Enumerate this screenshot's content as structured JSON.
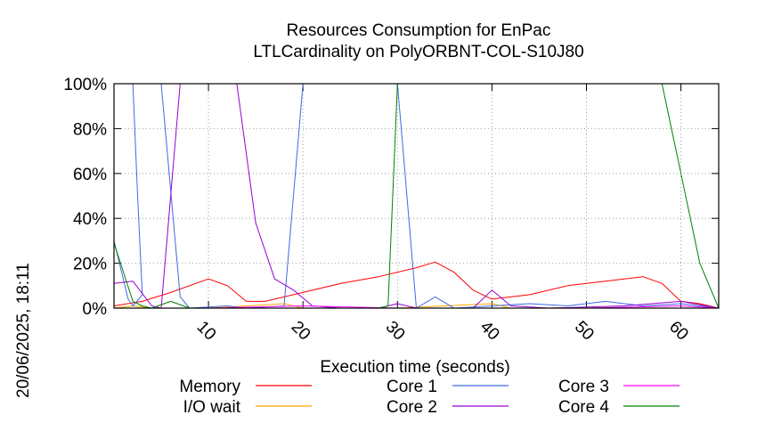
{
  "chart_data": {
    "type": "line",
    "title": "Resources Consumption for EnPac",
    "subtitle": "LTLCardinality on PolyORBNT-COL-S10J80",
    "xlabel": "Execution time (seconds)",
    "ylabel": "",
    "timestamp": "20/06/2025, 18:11",
    "xlim": [
      0,
      64
    ],
    "ylim": [
      0,
      100
    ],
    "x_ticks": [
      10,
      20,
      30,
      40,
      50,
      60
    ],
    "y_ticks": [
      0,
      20,
      40,
      60,
      80,
      100
    ],
    "y_tick_labels": [
      "0%",
      "20%",
      "40%",
      "60%",
      "80%",
      "100%"
    ],
    "grid": true,
    "legend_position": "bottom",
    "series": [
      {
        "name": "Memory",
        "color": "#ff0000",
        "points": [
          [
            0,
            1
          ],
          [
            3,
            3
          ],
          [
            6,
            7
          ],
          [
            10,
            13
          ],
          [
            12,
            10
          ],
          [
            14,
            3
          ],
          [
            16,
            3
          ],
          [
            20,
            7
          ],
          [
            24,
            11
          ],
          [
            28,
            14
          ],
          [
            32,
            18
          ],
          [
            34,
            20.5
          ],
          [
            36,
            16
          ],
          [
            38,
            8
          ],
          [
            40,
            4
          ],
          [
            44,
            6
          ],
          [
            48,
            10
          ],
          [
            52,
            12
          ],
          [
            56,
            14
          ],
          [
            58,
            11
          ],
          [
            60,
            3
          ],
          [
            62,
            2
          ],
          [
            64,
            0
          ]
        ]
      },
      {
        "name": "I/O wait",
        "color": "#ffa500",
        "points": [
          [
            0,
            0
          ],
          [
            2,
            1
          ],
          [
            4,
            0
          ],
          [
            10,
            0
          ],
          [
            18,
            2
          ],
          [
            20,
            0
          ],
          [
            30,
            0
          ],
          [
            40,
            2
          ],
          [
            42,
            0
          ],
          [
            64,
            0
          ]
        ]
      },
      {
        "name": "Core 1",
        "color": "#4169e1",
        "points": [
          [
            0,
            30
          ],
          [
            1.5,
            4
          ],
          [
            2,
            1
          ],
          [
            3,
            6
          ],
          [
            2.5,
            50
          ],
          [
            2,
            100
          ],
          [
            4,
            100
          ],
          [
            5,
            100
          ],
          [
            7,
            5
          ],
          [
            8,
            0
          ],
          [
            12,
            1
          ],
          [
            14,
            0
          ],
          [
            18,
            1
          ],
          [
            20,
            100
          ],
          [
            24,
            100
          ],
          [
            28,
            100
          ],
          [
            30,
            100
          ],
          [
            32,
            0
          ],
          [
            34,
            5
          ],
          [
            36,
            0
          ],
          [
            44,
            2
          ],
          [
            48,
            1
          ],
          [
            52,
            3
          ],
          [
            56,
            1
          ],
          [
            60,
            2
          ],
          [
            64,
            0
          ]
        ]
      },
      {
        "name": "Core 2",
        "color": "#9400d3",
        "points": [
          [
            0,
            11
          ],
          [
            2,
            12
          ],
          [
            4,
            1
          ],
          [
            5,
            0
          ],
          [
            7,
            100
          ],
          [
            10,
            100
          ],
          [
            13,
            100
          ],
          [
            15,
            38
          ],
          [
            17,
            13
          ],
          [
            19,
            8
          ],
          [
            21,
            1
          ],
          [
            24,
            0
          ],
          [
            28,
            0
          ],
          [
            30,
            2
          ],
          [
            32,
            0
          ],
          [
            38,
            0
          ],
          [
            40,
            8
          ],
          [
            42,
            1
          ],
          [
            46,
            0
          ],
          [
            54,
            1
          ],
          [
            60,
            3
          ],
          [
            64,
            0
          ]
        ]
      },
      {
        "name": "Core 3",
        "color": "#ff00ff",
        "points": [
          [
            0,
            0
          ],
          [
            10,
            0
          ],
          [
            20,
            1
          ],
          [
            30,
            0
          ],
          [
            40,
            0
          ],
          [
            50,
            0
          ],
          [
            60,
            1
          ],
          [
            64,
            0
          ]
        ]
      },
      {
        "name": "Core 4",
        "color": "#008000",
        "points": [
          [
            0,
            29
          ],
          [
            2,
            3
          ],
          [
            3,
            1
          ],
          [
            4,
            0
          ],
          [
            6,
            3
          ],
          [
            8,
            0
          ],
          [
            28,
            0
          ],
          [
            29,
            1
          ],
          [
            30,
            100
          ],
          [
            34,
            100
          ],
          [
            40,
            100
          ],
          [
            48,
            100
          ],
          [
            56,
            100
          ],
          [
            58,
            100
          ],
          [
            60,
            60
          ],
          [
            62,
            20
          ],
          [
            64,
            0
          ]
        ]
      }
    ]
  }
}
